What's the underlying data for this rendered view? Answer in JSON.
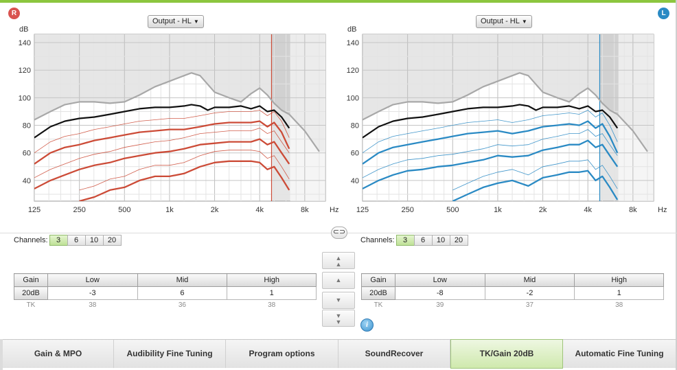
{
  "header": {
    "right_ear_label": "R",
    "left_ear_label": "L"
  },
  "right_panel": {
    "dropdown": "Output - HL",
    "channels_label": "Channels:",
    "channels": [
      "3",
      "6",
      "10",
      "20"
    ],
    "active_channel": "3",
    "table": {
      "headers": [
        "Gain",
        "Low",
        "Mid",
        "High"
      ],
      "gain_row": [
        "20dB",
        "-3",
        "6",
        "1"
      ],
      "tk_row": [
        "TK",
        "38",
        "36",
        "38"
      ]
    }
  },
  "left_panel": {
    "dropdown": "Output - HL",
    "channels_label": "Channels:",
    "channels": [
      "3",
      "6",
      "10",
      "20"
    ],
    "active_channel": "3",
    "table": {
      "headers": [
        "Gain",
        "Low",
        "Mid",
        "High"
      ],
      "gain_row": [
        "20dB",
        "-8",
        "-2",
        "1"
      ],
      "tk_row": [
        "TK",
        "39",
        "37",
        "38"
      ]
    }
  },
  "chart_data": [
    {
      "type": "line",
      "ear": "right",
      "ylabel": "dB",
      "xlabel": "Hz",
      "x_ticks": [
        "125",
        "250",
        "500",
        "1k",
        "2k",
        "4k",
        "8k"
      ],
      "y_ticks": [
        40,
        60,
        80,
        100,
        120,
        140
      ],
      "ylim": [
        25,
        146
      ],
      "xlim_hz": [
        125,
        11000
      ],
      "x_scale": "log",
      "grid": true,
      "accent_color": "#cc4b37",
      "series": [
        {
          "role": "mpo",
          "color": "#a8a8a8",
          "freq_hz": [
            125,
            160,
            200,
            250,
            315,
            400,
            500,
            630,
            800,
            1000,
            1250,
            1400,
            1600,
            2000,
            2500,
            3000,
            3500,
            4000,
            4500,
            5000,
            5600,
            6300,
            8000,
            10000
          ],
          "values": [
            84,
            90,
            95,
            97,
            97,
            96,
            97,
            102,
            108,
            112,
            116,
            118,
            116,
            104,
            100,
            97,
            103,
            107,
            102,
            96,
            91,
            88,
            76,
            61
          ]
        },
        {
          "role": "loud",
          "color": "#111111",
          "freq_hz": [
            125,
            160,
            200,
            250,
            315,
            400,
            500,
            630,
            800,
            1000,
            1250,
            1400,
            1600,
            1800,
            2000,
            2500,
            3000,
            3500,
            4000,
            4500,
            5000,
            5600,
            6300
          ],
          "values": [
            71,
            79,
            83,
            85,
            86,
            88,
            90,
            92,
            93,
            93,
            94,
            95,
            94,
            91,
            93,
            93,
            94,
            92,
            94,
            90,
            91,
            86,
            78
          ]
        },
        {
          "role": "average",
          "color": "#cc4b37",
          "freq_hz": [
            125,
            160,
            200,
            250,
            315,
            400,
            500,
            630,
            800,
            1000,
            1250,
            1600,
            2000,
            2500,
            3000,
            3500,
            4000,
            4500,
            5000,
            5600,
            6300
          ],
          "values": [
            52,
            60,
            64,
            66,
            69,
            71,
            73,
            75,
            76,
            77,
            77,
            79,
            81,
            82,
            82,
            82,
            83,
            79,
            82,
            75,
            63
          ]
        },
        {
          "role": "soft",
          "color": "#cc4b37",
          "freq_hz": [
            125,
            160,
            200,
            250,
            315,
            400,
            500,
            630,
            800,
            1000,
            1250,
            1600,
            2000,
            2500,
            3000,
            3500,
            4000,
            4500,
            5000,
            5600,
            6300
          ],
          "values": [
            34,
            40,
            44,
            48,
            51,
            53,
            56,
            58,
            60,
            61,
            63,
            66,
            67,
            68,
            68,
            68,
            70,
            66,
            68,
            60,
            52
          ]
        },
        {
          "role": "quiet",
          "color": "#cc4b37",
          "freq_hz": [
            250,
            315,
            400,
            500,
            630,
            800,
            1000,
            1250,
            1600,
            2000,
            2500,
            3000,
            3500,
            4000,
            4500,
            5000,
            5600,
            6300
          ],
          "values": [
            25,
            28,
            33,
            35,
            40,
            43,
            43,
            45,
            50,
            53,
            54,
            54,
            54,
            53,
            48,
            50,
            42,
            33
          ]
        }
      ]
    },
    {
      "type": "line",
      "ear": "left",
      "ylabel": "dB",
      "xlabel": "Hz",
      "x_ticks": [
        "125",
        "250",
        "500",
        "1k",
        "2k",
        "4k",
        "8k"
      ],
      "y_ticks": [
        40,
        60,
        80,
        100,
        120,
        140
      ],
      "ylim": [
        25,
        146
      ],
      "xlim_hz": [
        125,
        11000
      ],
      "x_scale": "log",
      "grid": true,
      "accent_color": "#2a8ac4",
      "series": [
        {
          "role": "mpo",
          "color": "#a8a8a8",
          "freq_hz": [
            125,
            160,
            200,
            250,
            315,
            400,
            500,
            630,
            800,
            1000,
            1250,
            1400,
            1600,
            2000,
            2500,
            3000,
            3500,
            4000,
            4500,
            5000,
            5600,
            6300,
            8000,
            10000
          ],
          "values": [
            84,
            90,
            95,
            97,
            97,
            96,
            97,
            102,
            108,
            112,
            116,
            118,
            116,
            104,
            100,
            97,
            103,
            107,
            102,
            96,
            91,
            88,
            76,
            61
          ]
        },
        {
          "role": "loud",
          "color": "#111111",
          "freq_hz": [
            125,
            160,
            200,
            250,
            315,
            400,
            500,
            630,
            800,
            1000,
            1250,
            1400,
            1600,
            1800,
            2000,
            2500,
            3000,
            3500,
            4000,
            4500,
            5000,
            5600,
            6300
          ],
          "values": [
            71,
            79,
            83,
            85,
            86,
            88,
            90,
            92,
            93,
            93,
            94,
            95,
            94,
            91,
            93,
            93,
            94,
            92,
            94,
            90,
            91,
            86,
            78
          ]
        },
        {
          "role": "average",
          "color": "#2a8ac4",
          "freq_hz": [
            125,
            160,
            200,
            250,
            315,
            400,
            500,
            630,
            800,
            1000,
            1250,
            1600,
            2000,
            2500,
            3000,
            3500,
            4000,
            4500,
            5000,
            5600,
            6300
          ],
          "values": [
            52,
            60,
            64,
            66,
            68,
            70,
            72,
            74,
            75,
            76,
            74,
            76,
            79,
            80,
            81,
            80,
            83,
            78,
            81,
            72,
            60
          ]
        },
        {
          "role": "soft",
          "color": "#2a8ac4",
          "freq_hz": [
            125,
            160,
            200,
            250,
            315,
            400,
            500,
            630,
            800,
            1000,
            1250,
            1600,
            2000,
            2500,
            3000,
            3500,
            4000,
            4500,
            5000,
            5600,
            6300
          ],
          "values": [
            34,
            40,
            44,
            47,
            48,
            50,
            51,
            53,
            55,
            58,
            57,
            58,
            62,
            64,
            66,
            66,
            69,
            64,
            66,
            58,
            50
          ]
        },
        {
          "role": "quiet",
          "color": "#2a8ac4",
          "freq_hz": [
            500,
            630,
            800,
            1000,
            1250,
            1600,
            2000,
            2500,
            3000,
            3500,
            4000,
            4500,
            5000,
            5600,
            6300
          ],
          "values": [
            25,
            30,
            35,
            38,
            40,
            36,
            42,
            44,
            46,
            46,
            47,
            40,
            43,
            35,
            26
          ]
        }
      ]
    }
  ],
  "controls": {
    "link_icon": "link-icon",
    "step_buttons": [
      "double-up-icon",
      "up-icon",
      "down-icon",
      "double-down-icon"
    ],
    "info_icon_label": "i"
  },
  "tabs": [
    {
      "label": "Gain & MPO",
      "active": false
    },
    {
      "label": "Audibility Fine Tuning",
      "active": false
    },
    {
      "label": "Program options",
      "active": false
    },
    {
      "label": "SoundRecover",
      "active": false
    },
    {
      "label": "TK/Gain 20dB",
      "active": true
    },
    {
      "label": "Automatic Fine Tuning",
      "active": false
    }
  ]
}
